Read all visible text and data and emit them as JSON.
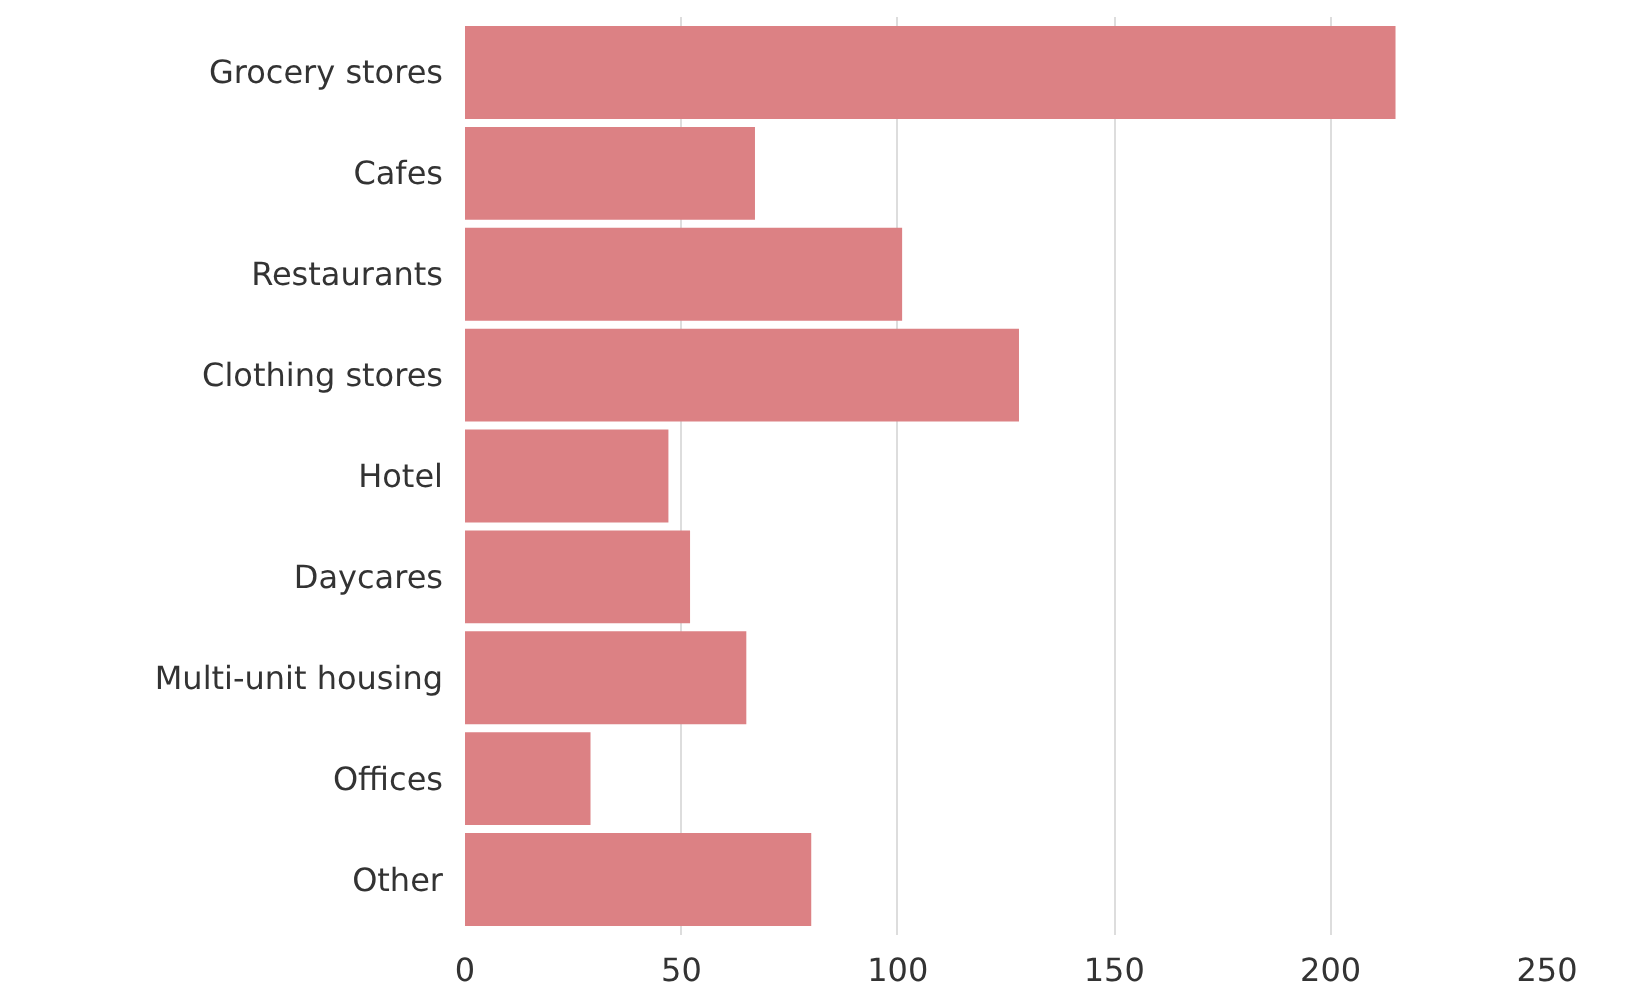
{
  "chart_data": {
    "type": "bar",
    "orientation": "horizontal",
    "categories": [
      "Grocery stores",
      "Cafes",
      "Restaurants",
      "Clothing stores",
      "Hotel",
      "Daycares",
      "Multi-unit housing",
      "Offices",
      "Other"
    ],
    "values": [
      215,
      67,
      101,
      128,
      47,
      52,
      65,
      29,
      80
    ],
    "color": "#dc8184",
    "xlim": [
      0,
      250
    ],
    "xticks": [
      0,
      50,
      100,
      150,
      200,
      250
    ],
    "grid": "x"
  }
}
